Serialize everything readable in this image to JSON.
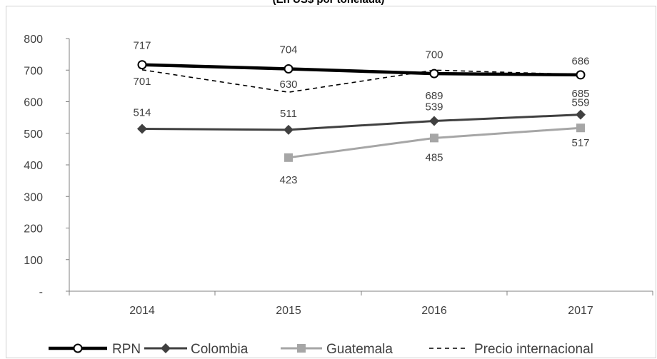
{
  "chart_data": {
    "type": "line",
    "title": "(En US$ por tonelada)",
    "xlabel": "",
    "ylabel": "",
    "categories": [
      "2014",
      "2015",
      "2016",
      "2017"
    ],
    "ylim": [
      0,
      800
    ],
    "y_ticks": [
      0,
      100,
      200,
      300,
      400,
      500,
      600,
      700,
      800
    ],
    "y_tick_labels": [
      "-",
      "100",
      "200",
      "300",
      "400",
      "500",
      "600",
      "700",
      "800"
    ],
    "grid": false,
    "legend": "bottom",
    "series": [
      {
        "name": "RPN",
        "color": "#000000",
        "style": "solid-thick",
        "marker": "open-circle",
        "values": [
          717,
          704,
          689,
          685
        ],
        "labels": [
          "717",
          "704",
          "689",
          "685"
        ]
      },
      {
        "name": "Colombia",
        "color": "#404040",
        "style": "solid",
        "marker": "diamond",
        "values": [
          514,
          511,
          539,
          559
        ],
        "labels": [
          "514",
          "511",
          "539",
          "559"
        ]
      },
      {
        "name": "Guatemala",
        "color": "#a6a6a6",
        "style": "solid",
        "marker": "square",
        "values": [
          null,
          423,
          485,
          517
        ],
        "labels": [
          null,
          "423",
          "485",
          "517"
        ]
      },
      {
        "name": "Precio internacional",
        "color": "#000000",
        "style": "dashed",
        "marker": "none",
        "values": [
          701,
          630,
          700,
          686
        ],
        "labels": [
          "701",
          "630",
          "700",
          "686"
        ]
      }
    ]
  }
}
